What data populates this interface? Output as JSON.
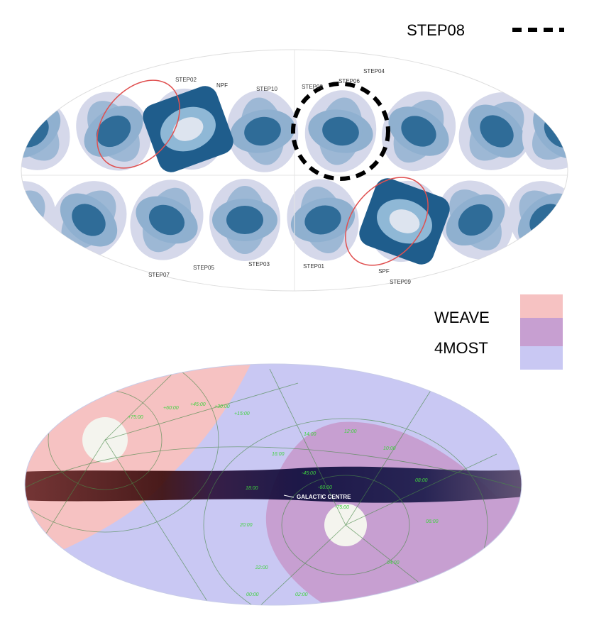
{
  "top_legend": {
    "label": "STEP08"
  },
  "top_map": {
    "field_labels": [
      "STEP02",
      "NPF",
      "STEP10",
      "STEP08",
      "STEP06",
      "STEP04",
      "STEP07",
      "STEP05",
      "STEP03",
      "STEP01",
      "SPF",
      "STEP09"
    ]
  },
  "bottom_legend": {
    "items": [
      "WEAVE",
      "4MOST"
    ]
  },
  "bottom_map": {
    "annotation": "GALACTIC CENTRE",
    "grid_labels": [
      "+75:00",
      "+60:00",
      "+45:00",
      "+30:00",
      "+15:00",
      "14:00",
      "12:00",
      "10:00",
      "16:00",
      "18:00",
      "-45:00",
      "-60:00",
      "-75:00",
      "20:00",
      "22:00",
      "00:00",
      "02:00",
      "04:00",
      "06:00",
      "08:00"
    ]
  }
}
